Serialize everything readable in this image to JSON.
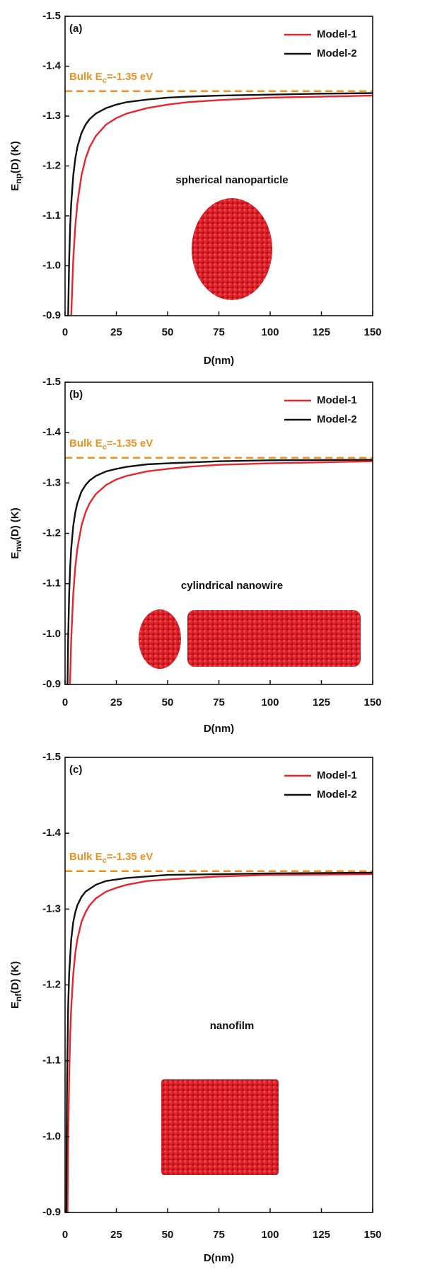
{
  "chart_data": [
    {
      "type": "line",
      "panel_label": "(a)",
      "ylabel": {
        "main": "E",
        "sub": "np",
        "rest": "(D) (K)"
      },
      "xlabel": "D(nm)",
      "xlim": [
        0,
        150
      ],
      "xticks": [
        0,
        25,
        50,
        75,
        100,
        125,
        150
      ],
      "ylim": [
        -0.9,
        -1.5
      ],
      "yticks": [
        -1.5,
        -1.4,
        -1.3,
        -1.2,
        -1.1,
        {
          "value": -1,
          "label": "-1.0"
        },
        -0.9
      ],
      "legend": "upper right",
      "hline": {
        "value": -1.35,
        "color": "#f0901e",
        "label": "Bulk E",
        "label_sub": "c",
        "label_rest": "=-1.35 eV"
      },
      "structure_label": "spherical nanoparticle",
      "series": [
        {
          "name": "Model-1",
          "color": "#e8252c",
          "x": [
            3,
            4,
            5,
            6,
            8,
            10,
            12,
            15,
            20,
            25,
            30,
            40,
            50,
            60,
            75,
            100,
            125,
            150
          ],
          "values": [
            -0.9,
            -1.013,
            -1.08,
            -1.125,
            -1.181,
            -1.215,
            -1.238,
            -1.26,
            -1.283,
            -1.296,
            -1.305,
            -1.316,
            -1.323,
            -1.328,
            -1.332,
            -1.337,
            -1.339,
            -1.341
          ]
        },
        {
          "name": "Model-2",
          "color": "#111111",
          "x": [
            1.5,
            2,
            2.5,
            3,
            4,
            5,
            6,
            8,
            10,
            12,
            15,
            20,
            25,
            30,
            40,
            50,
            60,
            75,
            100,
            125,
            150
          ],
          "values": [
            -0.9,
            -1.013,
            -1.08,
            -1.125,
            -1.181,
            -1.215,
            -1.238,
            -1.266,
            -1.283,
            -1.294,
            -1.305,
            -1.316,
            -1.323,
            -1.328,
            -1.333,
            -1.337,
            -1.339,
            -1.341,
            -1.343,
            -1.345,
            -1.346
          ]
        }
      ]
    },
    {
      "type": "line",
      "panel_label": "(b)",
      "ylabel": {
        "main": "E",
        "sub": "nw",
        "rest": "(D) (K)"
      },
      "xlabel": "D(nm)",
      "xlim": [
        0,
        150
      ],
      "xticks": [
        0,
        25,
        50,
        75,
        100,
        125,
        150
      ],
      "ylim": [
        -0.9,
        -1.5
      ],
      "yticks": [
        -1.5,
        -1.4,
        -1.3,
        -1.2,
        -1.1,
        {
          "value": -1,
          "label": "-1.0"
        },
        -0.9
      ],
      "legend": "upper right",
      "hline": {
        "value": -1.35,
        "color": "#f0901e",
        "label": "Bulk E",
        "label_sub": "c",
        "label_rest": "=-1.35 eV"
      },
      "structure_label": "cylindrical nanowire",
      "series": [
        {
          "name": "Model-1",
          "color": "#e8252c",
          "x": [
            2.4,
            3,
            4,
            5,
            6,
            8,
            10,
            12,
            15,
            20,
            25,
            30,
            40,
            50,
            60,
            75,
            100,
            125,
            150
          ],
          "values": [
            -0.9,
            -0.99,
            -1.08,
            -1.134,
            -1.17,
            -1.215,
            -1.242,
            -1.26,
            -1.278,
            -1.296,
            -1.307,
            -1.314,
            -1.323,
            -1.328,
            -1.332,
            -1.336,
            -1.339,
            -1.341,
            -1.343
          ]
        },
        {
          "name": "Model-2",
          "color": "#111111",
          "x": [
            1.2,
            1.5,
            2,
            2.5,
            3,
            4,
            5,
            6,
            8,
            10,
            12,
            15,
            20,
            25,
            30,
            40,
            50,
            75,
            100,
            150
          ],
          "values": [
            -0.9,
            -0.99,
            -1.08,
            -1.134,
            -1.17,
            -1.215,
            -1.242,
            -1.26,
            -1.283,
            -1.296,
            -1.305,
            -1.314,
            -1.323,
            -1.328,
            -1.332,
            -1.337,
            -1.339,
            -1.343,
            -1.345,
            -1.346
          ]
        }
      ]
    },
    {
      "type": "line",
      "panel_label": "(c)",
      "ylabel": {
        "main": "E",
        "sub": "nf",
        "rest": "(D) (K)"
      },
      "xlabel": "D(nm)",
      "xlim": [
        0,
        150
      ],
      "xticks": [
        0,
        25,
        50,
        75,
        100,
        125,
        150
      ],
      "ylim": [
        -0.9,
        -1.5
      ],
      "yticks": [
        -1.5,
        -1.4,
        -1.3,
        -1.2,
        -1.1,
        {
          "value": -1,
          "label": "-1.0"
        },
        -0.9
      ],
      "legend": "upper right",
      "hline": {
        "value": -1.35,
        "color": "#f0901e",
        "label": "Bulk E",
        "label_sub": "c",
        "label_rest": "=-1.35 eV"
      },
      "structure_label": "nanofilm",
      "series": [
        {
          "name": "Model-1",
          "color": "#e8252c",
          "x": [
            1.2,
            1.5,
            2,
            2.5,
            3,
            4,
            5,
            6,
            8,
            10,
            12,
            15,
            20,
            25,
            30,
            40,
            50,
            75,
            100,
            150
          ],
          "values": [
            -0.9,
            -0.99,
            -1.08,
            -1.134,
            -1.17,
            -1.215,
            -1.242,
            -1.26,
            -1.283,
            -1.296,
            -1.305,
            -1.314,
            -1.323,
            -1.328,
            -1.332,
            -1.337,
            -1.339,
            -1.343,
            -1.345,
            -1.346
          ]
        },
        {
          "name": "Model-2",
          "color": "#111111",
          "x": [
            0.6,
            0.8,
            1,
            1.5,
            2,
            3,
            4,
            5,
            6,
            8,
            10,
            15,
            20,
            30,
            50,
            75,
            100,
            150
          ],
          "values": [
            -0.9,
            -1.013,
            -1.08,
            -1.17,
            -1.215,
            -1.26,
            -1.283,
            -1.296,
            -1.305,
            -1.316,
            -1.323,
            -1.332,
            -1.337,
            -1.341,
            -1.345,
            -1.346,
            -1.347,
            -1.348
          ]
        }
      ]
    }
  ]
}
